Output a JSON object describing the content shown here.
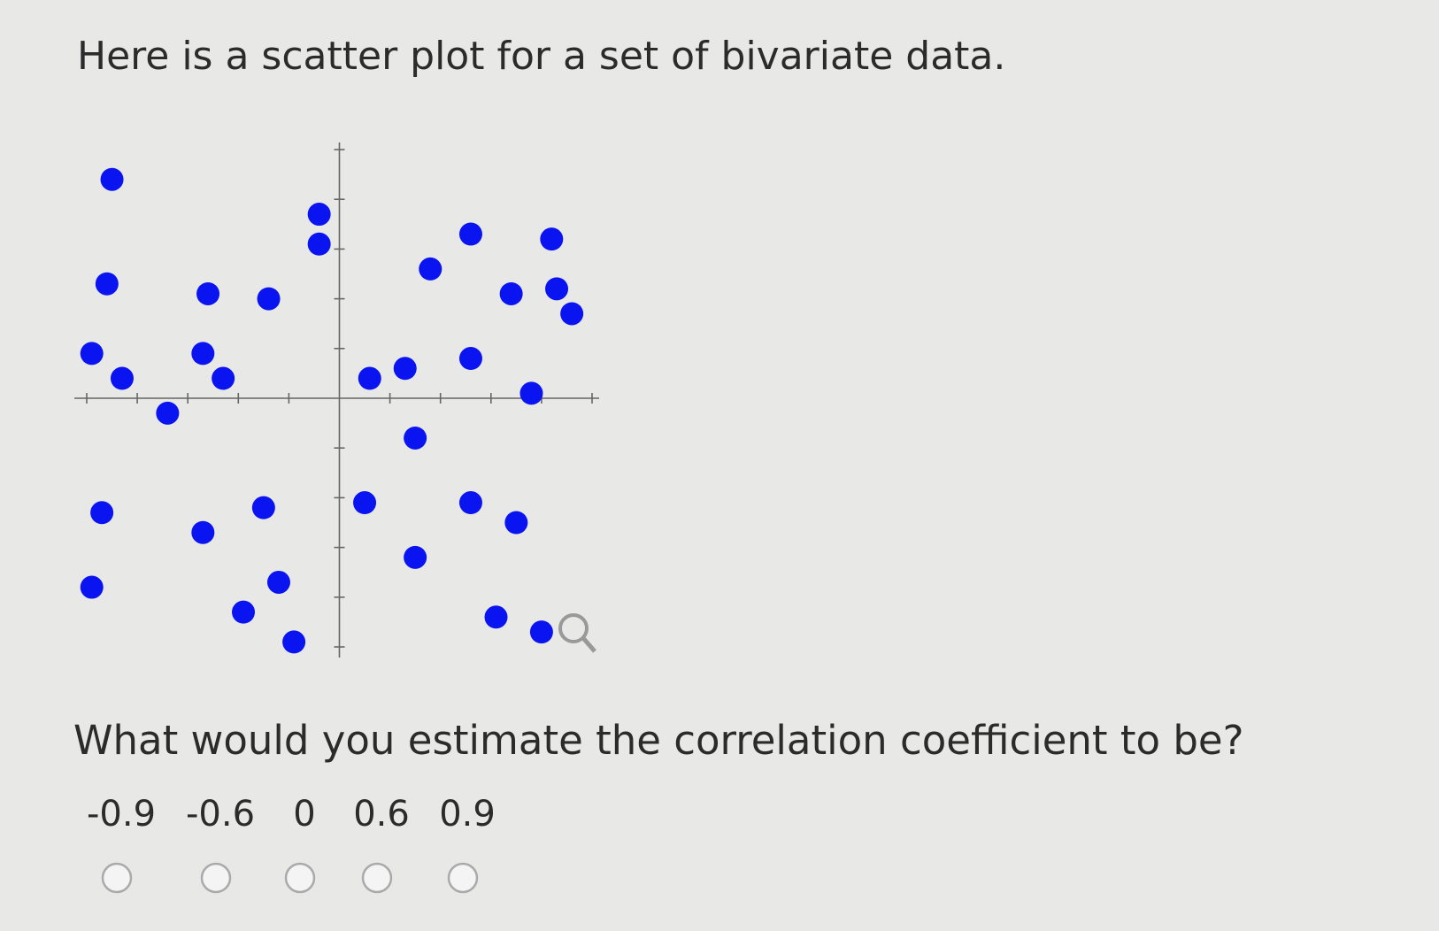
{
  "header": {
    "title": "Here is a scatter plot for a set of bivariate data."
  },
  "chart_data": {
    "type": "scatter",
    "color": "#0a14f0",
    "xlim": [
      -5,
      5
    ],
    "ylim": [
      -5,
      5
    ],
    "xticks": [
      -5,
      -4,
      -3,
      -2,
      -1,
      1,
      2,
      3,
      4,
      5
    ],
    "yticks": [
      -5,
      -4,
      -3,
      -2,
      -1,
      1,
      2,
      3,
      4,
      5
    ],
    "x": [
      -4.5,
      -0.4,
      -0.4,
      2.6,
      4.2,
      1.8,
      -4.6,
      -2.6,
      -1.4,
      3.4,
      4.3,
      4.6,
      -4.9,
      -2.7,
      -4.3,
      -2.3,
      -3.4,
      0.6,
      1.3,
      2.6,
      3.8,
      1.5,
      -4.7,
      -2.7,
      -1.5,
      0.5,
      2.6,
      3.5,
      1.5,
      -4.9,
      -1.2,
      -1.9,
      -0.9,
      3.1,
      4.0
    ],
    "values": [
      4.4,
      3.7,
      3.1,
      3.3,
      3.2,
      2.6,
      2.3,
      2.1,
      2.0,
      2.1,
      2.2,
      1.7,
      0.9,
      0.9,
      0.4,
      0.4,
      -0.3,
      0.4,
      0.6,
      0.8,
      0.1,
      -0.8,
      -2.3,
      -2.7,
      -2.2,
      -2.1,
      -2.1,
      -2.5,
      -3.2,
      -3.8,
      -3.7,
      -4.3,
      -4.9,
      -4.4,
      -4.7
    ]
  },
  "question": {
    "text": "What would you estimate the correlation coefficient to be?",
    "options": [
      "-0.9",
      "-0.6",
      "0",
      "0.6",
      "0.9"
    ]
  }
}
